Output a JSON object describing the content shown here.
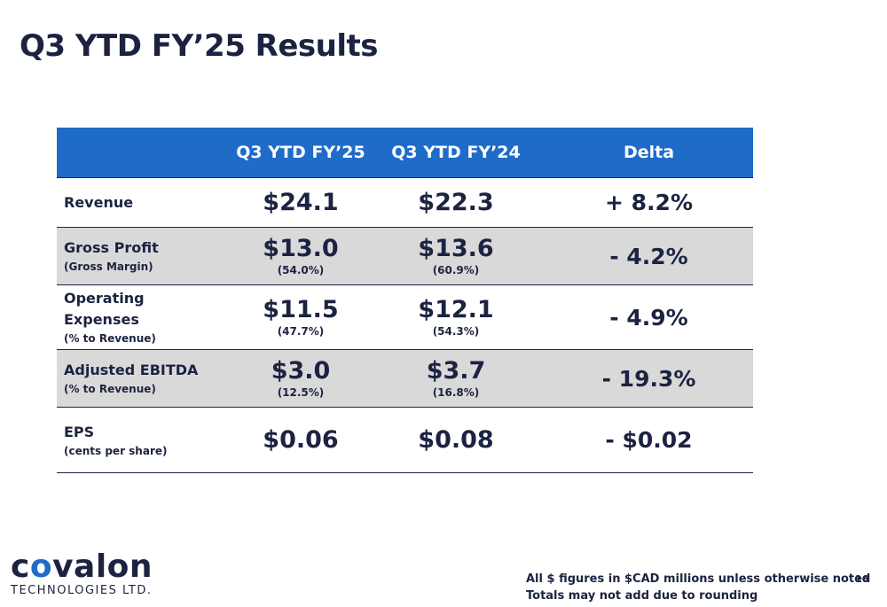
{
  "title": "Q3 YTD FY’25 Results",
  "table": {
    "headers": [
      "",
      "Q3 YTD FY’25",
      "Q3 YTD  FY’24",
      "Delta"
    ],
    "rows": [
      {
        "label": "Revenue",
        "sublabel": "",
        "fy25": "$24.1",
        "fy25_sub": "",
        "fy24": "$22.3",
        "fy24_sub": "",
        "delta": "+ 8.2%"
      },
      {
        "label": "Gross Profit",
        "sublabel": "(Gross Margin)",
        "fy25": "$13.0",
        "fy25_sub": "(54.0%)",
        "fy24": "$13.6",
        "fy24_sub": "(60.9%)",
        "delta": "- 4.2%"
      },
      {
        "label": "Operating Expenses",
        "sublabel": "(% to Revenue)",
        "fy25": "$11.5",
        "fy25_sub": "(47.7%)",
        "fy24": "$12.1",
        "fy24_sub": "(54.3%)",
        "delta": "- 4.9%"
      },
      {
        "label": "Adjusted EBITDA",
        "sublabel": "(% to Revenue)",
        "fy25": "$3.0",
        "fy25_sub": "(12.5%)",
        "fy24": "$3.7",
        "fy24_sub": "(16.8%)",
        "delta": "- 19.3%"
      },
      {
        "label": "EPS",
        "sublabel": "(cents per share)",
        "fy25": "$0.06",
        "fy25_sub": "",
        "fy24": "$0.08",
        "fy24_sub": "",
        "delta": "- $0.02"
      }
    ]
  },
  "logo": {
    "word_prefix": "c",
    "word_accent": "o",
    "word_suffix": "valon",
    "subtitle": "TECHNOLOGIES LTD."
  },
  "footnotes": [
    "All $ figures in $CAD millions unless otherwise noted",
    "Totals may not add due to rounding"
  ],
  "page_number": "16",
  "colors": {
    "header_blue": "#1f6bc8",
    "navy_text": "#1c2341",
    "shaded_row": "#d9d9d9"
  }
}
